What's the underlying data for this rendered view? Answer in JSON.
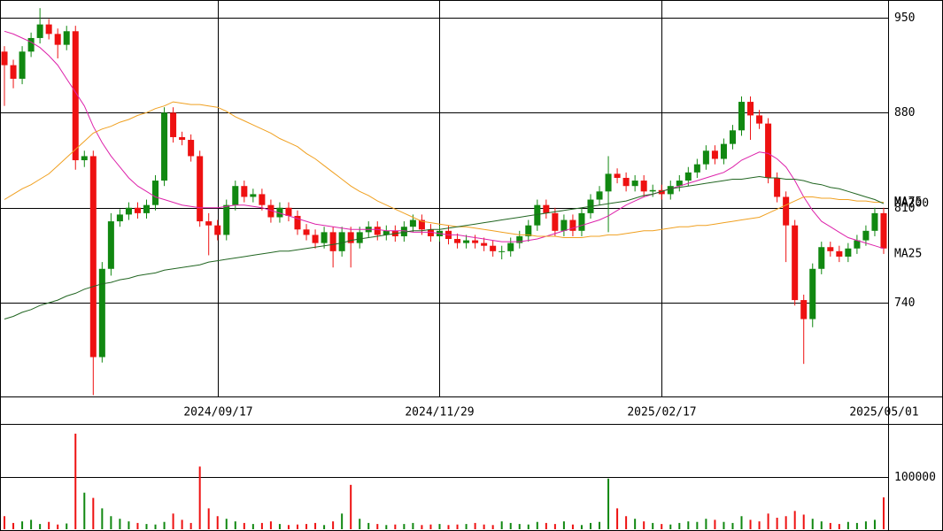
{
  "chart_data": {
    "type": "candlestick",
    "grid": true,
    "up_color": "#118811",
    "down_color": "#ee1111",
    "categories": [
      null,
      null,
      null,
      null,
      null,
      null,
      null,
      null,
      null,
      null,
      null,
      null,
      null,
      null,
      null,
      null,
      null,
      null,
      null,
      null,
      null,
      null,
      null,
      null,
      "2024/09/17",
      null,
      null,
      null,
      null,
      null,
      null,
      null,
      null,
      null,
      null,
      null,
      null,
      null,
      null,
      null,
      null,
      null,
      null,
      null,
      null,
      null,
      null,
      null,
      null,
      "2024/11/29",
      null,
      null,
      null,
      null,
      null,
      null,
      null,
      null,
      null,
      null,
      null,
      null,
      null,
      null,
      null,
      null,
      null,
      null,
      null,
      null,
      null,
      null,
      null,
      null,
      "2025/02/17",
      null,
      null,
      null,
      null,
      null,
      null,
      null,
      null,
      null,
      null,
      null,
      null,
      null,
      null,
      null,
      null,
      null,
      null,
      null,
      null,
      null,
      null,
      null,
      null,
      "2025/05/01"
    ],
    "open": [
      925,
      915,
      905,
      925,
      935,
      945,
      938,
      930,
      940,
      845,
      848,
      700,
      765,
      800,
      805,
      810,
      806,
      812,
      830,
      880,
      862,
      860,
      848,
      800,
      797,
      790,
      812,
      826,
      818,
      820,
      812,
      803,
      810,
      804,
      794,
      790,
      784,
      792,
      778,
      792,
      784,
      792,
      796,
      790,
      793,
      789,
      796,
      801,
      794,
      789,
      793,
      787,
      784,
      786,
      784,
      782,
      778,
      778,
      784,
      789,
      797,
      812,
      806,
      793,
      801,
      793,
      806,
      816,
      822,
      835,
      832,
      826,
      830,
      822,
      823,
      820,
      826,
      830,
      836,
      842,
      852,
      846,
      857,
      867,
      888,
      878,
      872,
      832,
      818,
      797,
      742,
      728,
      765,
      781,
      778,
      774,
      780,
      786,
      793,
      806
    ],
    "high": [
      929,
      919,
      929,
      939,
      957,
      949,
      942,
      944,
      944,
      852,
      852,
      770,
      806,
      809,
      814,
      814,
      816,
      834,
      884,
      884,
      866,
      864,
      852,
      806,
      801,
      816,
      830,
      830,
      824,
      824,
      816,
      814,
      814,
      808,
      798,
      794,
      796,
      796,
      796,
      796,
      796,
      800,
      800,
      797,
      797,
      800,
      805,
      805,
      798,
      797,
      797,
      791,
      790,
      790,
      788,
      786,
      782,
      788,
      793,
      801,
      816,
      816,
      810,
      805,
      805,
      810,
      820,
      826,
      848,
      839,
      836,
      834,
      834,
      827,
      827,
      830,
      834,
      840,
      846,
      856,
      856,
      861,
      871,
      892,
      892,
      882,
      876,
      836,
      822,
      801,
      746,
      769,
      785,
      785,
      782,
      784,
      790,
      797,
      810,
      810
    ],
    "low": [
      885,
      898,
      901,
      921,
      931,
      934,
      920,
      926,
      838,
      840,
      672,
      696,
      760,
      796,
      801,
      802,
      802,
      808,
      826,
      858,
      856,
      844,
      796,
      775,
      786,
      786,
      808,
      814,
      814,
      808,
      799,
      799,
      800,
      790,
      786,
      780,
      780,
      766,
      774,
      766,
      780,
      788,
      786,
      786,
      785,
      785,
      792,
      790,
      785,
      785,
      783,
      780,
      780,
      780,
      778,
      774,
      772,
      774,
      780,
      785,
      793,
      802,
      789,
      789,
      789,
      789,
      802,
      812,
      792,
      828,
      822,
      822,
      818,
      818,
      816,
      816,
      822,
      826,
      832,
      838,
      842,
      842,
      853,
      863,
      860,
      868,
      828,
      814,
      770,
      738,
      695,
      722,
      761,
      774,
      770,
      770,
      776,
      782,
      789,
      776
    ],
    "close": [
      915,
      905,
      925,
      935,
      945,
      938,
      930,
      940,
      845,
      848,
      700,
      765,
      800,
      805,
      810,
      806,
      812,
      830,
      880,
      862,
      860,
      848,
      800,
      797,
      790,
      812,
      826,
      818,
      820,
      812,
      803,
      810,
      804,
      794,
      790,
      784,
      792,
      778,
      792,
      784,
      792,
      796,
      790,
      793,
      789,
      796,
      801,
      794,
      789,
      793,
      787,
      784,
      786,
      784,
      782,
      778,
      778,
      784,
      789,
      797,
      812,
      806,
      793,
      801,
      793,
      806,
      816,
      822,
      835,
      832,
      826,
      830,
      822,
      823,
      820,
      826,
      830,
      836,
      842,
      852,
      846,
      857,
      867,
      888,
      878,
      872,
      832,
      818,
      797,
      742,
      728,
      765,
      781,
      778,
      774,
      780,
      786,
      793,
      806,
      780
    ],
    "ylim": [
      671,
      963
    ],
    "yticks": [
      740,
      810,
      880,
      950
    ],
    "series": [
      {
        "name": "MA25",
        "color": "#dd22aa",
        "values": [
          940,
          938,
          935,
          932,
          928,
          922,
          915,
          905,
          895,
          885,
          870,
          858,
          848,
          840,
          832,
          826,
          822,
          818,
          816,
          814,
          812,
          811,
          810,
          810,
          810,
          811,
          812,
          812,
          811,
          810,
          808,
          806,
          804,
          802,
          800,
          798,
          797,
          796,
          795,
          794,
          794,
          794,
          794,
          793,
          793,
          793,
          792,
          792,
          792,
          791,
          790,
          790,
          789,
          788,
          787,
          786,
          785,
          785,
          785,
          786,
          787,
          789,
          791,
          793,
          795,
          797,
          799,
          801,
          804,
          808,
          812,
          815,
          818,
          820,
          822,
          824,
          826,
          828,
          830,
          832,
          834,
          836,
          840,
          845,
          848,
          851,
          850,
          846,
          840,
          830,
          818,
          808,
          800,
          796,
          792,
          788,
          786,
          784,
          782,
          780
        ]
      },
      {
        "name": "MA75",
        "color": "#f0a020",
        "values": [
          816,
          820,
          824,
          827,
          831,
          835,
          841,
          847,
          853,
          859,
          865,
          868,
          870,
          873,
          875,
          878,
          880,
          883,
          885,
          888,
          887,
          886,
          886,
          885,
          884,
          881,
          877,
          874,
          871,
          868,
          865,
          861,
          858,
          855,
          850,
          846,
          841,
          836,
          831,
          826,
          822,
          819,
          815,
          812,
          809,
          806,
          803,
          800,
          799,
          798,
          797,
          796,
          796,
          795,
          794,
          793,
          792,
          791,
          790,
          790,
          789,
          789,
          789,
          788,
          788,
          788,
          789,
          789,
          790,
          790,
          791,
          792,
          793,
          793,
          794,
          795,
          796,
          796,
          797,
          797,
          798,
          799,
          800,
          801,
          802,
          803,
          806,
          809,
          812,
          815,
          818,
          818,
          817,
          817,
          816,
          816,
          815,
          815,
          814,
          814
        ]
      },
      {
        "name": "MA200",
        "color": "#226622",
        "values": [
          728,
          730,
          733,
          735,
          738,
          740,
          742,
          745,
          747,
          750,
          752,
          754,
          755,
          757,
          758,
          760,
          761,
          762,
          764,
          765,
          766,
          767,
          768,
          770,
          771,
          772,
          773,
          774,
          775,
          776,
          777,
          778,
          778,
          779,
          780,
          781,
          782,
          783,
          784,
          786,
          787,
          788,
          789,
          790,
          791,
          792,
          793,
          793,
          794,
          794,
          795,
          796,
          797,
          798,
          799,
          800,
          801,
          802,
          803,
          804,
          805,
          806,
          807,
          808,
          809,
          810,
          811,
          812,
          813,
          814,
          815,
          817,
          819,
          820,
          822,
          824,
          825,
          826,
          827,
          828,
          829,
          830,
          831,
          831,
          832,
          833,
          832,
          832,
          831,
          831,
          830,
          828,
          827,
          825,
          824,
          822,
          820,
          818,
          816,
          813
        ]
      }
    ],
    "volume": {
      "values": [
        25000,
        12000,
        15000,
        18000,
        10000,
        14000,
        9000,
        11000,
        183000,
        70000,
        60000,
        40000,
        25000,
        20000,
        15000,
        12000,
        10000,
        9000,
        14000,
        30000,
        18000,
        12000,
        120000,
        40000,
        25000,
        20000,
        15000,
        12000,
        10000,
        12000,
        15000,
        10000,
        8000,
        9000,
        10000,
        12000,
        8000,
        15000,
        30000,
        85000,
        20000,
        12000,
        10000,
        8000,
        9000,
        10000,
        12000,
        8000,
        9000,
        10000,
        8000,
        9000,
        10000,
        12000,
        9000,
        8000,
        15000,
        12000,
        10000,
        9000,
        14000,
        12000,
        10000,
        15000,
        9000,
        8000,
        12000,
        14000,
        97000,
        40000,
        25000,
        20000,
        15000,
        12000,
        10000,
        9000,
        12000,
        15000,
        14000,
        20000,
        18000,
        14000,
        12000,
        25000,
        18000,
        15000,
        30000,
        22000,
        25000,
        35000,
        28000,
        20000,
        15000,
        12000,
        10000,
        14000,
        12000,
        15000,
        18000,
        61000
      ],
      "ylim": [
        0,
        200000
      ],
      "yticks": [
        100000
      ]
    }
  }
}
